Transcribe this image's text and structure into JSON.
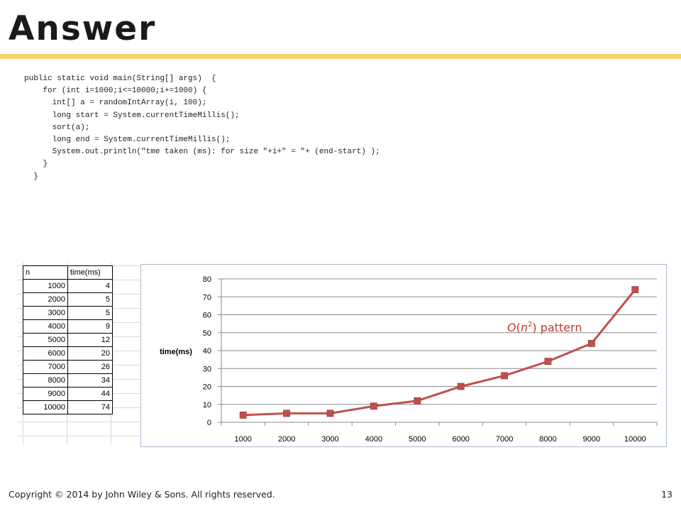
{
  "slide": {
    "title": "Answer",
    "code": "public static void main(String[] args)  {\n    for (int i=1000;i<=10000;i+=1000) {\n      int[] a = randomIntArray(i, 100);\n      long start = System.currentTimeMillis();\n      sort(a);\n      long end = System.currentTimeMillis();\n      System.out.println(\"tme taken (ms): for size \"+i+\" = \"+ (end-start) );\n    }\n  }",
    "footer": "Copyright © 2014 by John Wiley & Sons.  All rights reserved.",
    "page_number": "13"
  },
  "sheet": {
    "headers": [
      "n",
      "time(ms)"
    ],
    "rows": [
      [
        "1000",
        "4"
      ],
      [
        "2000",
        "5"
      ],
      [
        "3000",
        "5"
      ],
      [
        "4000",
        "9"
      ],
      [
        "5000",
        "12"
      ],
      [
        "6000",
        "20"
      ],
      [
        "7000",
        "26"
      ],
      [
        "8000",
        "34"
      ],
      [
        "9000",
        "44"
      ],
      [
        "10000",
        "74"
      ]
    ]
  },
  "chart_data": {
    "type": "line",
    "categories": [
      "1000",
      "2000",
      "3000",
      "4000",
      "5000",
      "6000",
      "7000",
      "8000",
      "9000",
      "10000"
    ],
    "series": [
      {
        "name": "time(ms)",
        "values": [
          4,
          5,
          5,
          9,
          12,
          20,
          26,
          34,
          44,
          74
        ],
        "color": "#c0504d"
      }
    ],
    "ylabel": "time(ms)",
    "ylim": [
      0,
      80
    ],
    "yticks": [
      0,
      10,
      20,
      30,
      40,
      50,
      60,
      70,
      80
    ],
    "grid": true,
    "annotation": {
      "O": "O",
      "n": "n",
      "exp": "2",
      "rest": " pattern",
      "color": "#c0392b"
    }
  }
}
